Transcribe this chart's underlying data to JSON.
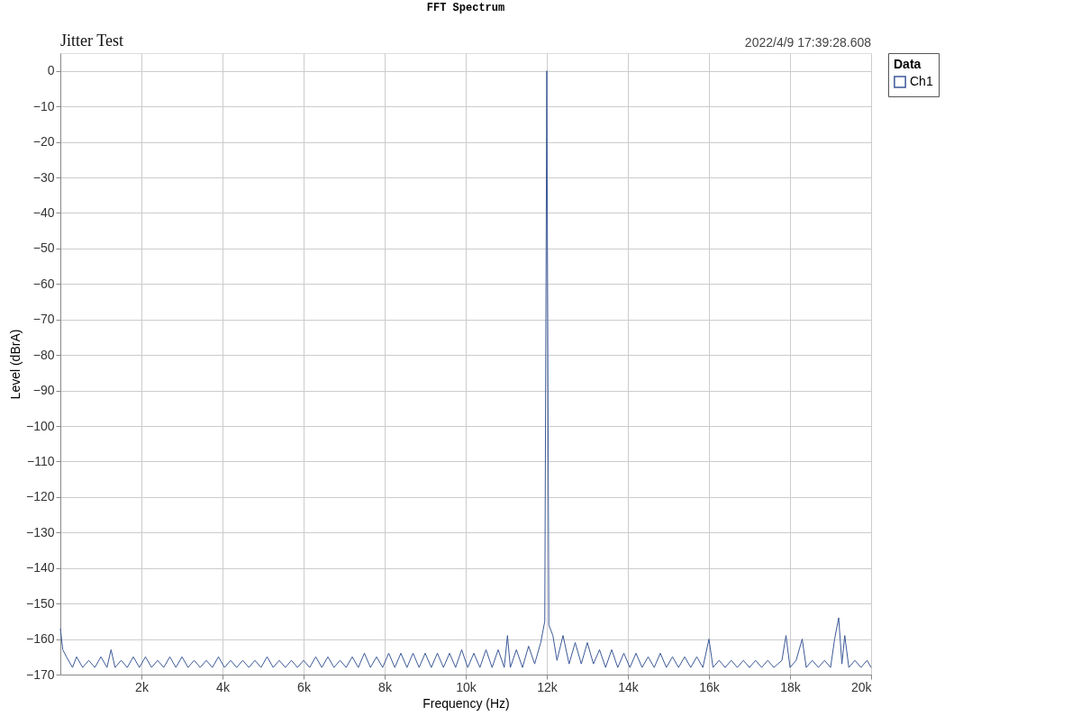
{
  "chart_data": {
    "type": "line",
    "title": "FFT Spectrum",
    "subtitle": "Jitter Test",
    "annotations": [
      "2022/4/9 17:39:28.608"
    ],
    "xlabel": "Frequency (Hz)",
    "ylabel": "Level (dBrA)",
    "legend_title": "Data",
    "legend": "right",
    "grid": true,
    "xlim": [
      0,
      20000
    ],
    "xticks": [
      {
        "value": 2000,
        "label": "2k"
      },
      {
        "value": 4000,
        "label": "4k"
      },
      {
        "value": 6000,
        "label": "6k"
      },
      {
        "value": 8000,
        "label": "8k"
      },
      {
        "value": 10000,
        "label": "10k"
      },
      {
        "value": 12000,
        "label": "12k"
      },
      {
        "value": 14000,
        "label": "14k"
      },
      {
        "value": 16000,
        "label": "16k"
      },
      {
        "value": 18000,
        "label": "18k"
      },
      {
        "value": 20000,
        "label": "20k"
      }
    ],
    "ylim": [
      -170,
      5
    ],
    "yticks": [
      0,
      -10,
      -20,
      -30,
      -40,
      -50,
      -60,
      -70,
      -80,
      -90,
      -100,
      -110,
      -120,
      -130,
      -140,
      -150,
      -160,
      -170
    ],
    "series": [
      {
        "name": "Ch1",
        "color": "#3b5998",
        "x": [
          0,
          60,
          150,
          300,
          400,
          550,
          700,
          850,
          1000,
          1150,
          1250,
          1350,
          1500,
          1650,
          1800,
          1950,
          2100,
          2250,
          2400,
          2550,
          2700,
          2850,
          3000,
          3150,
          3300,
          3450,
          3600,
          3750,
          3900,
          4050,
          4200,
          4350,
          4500,
          4650,
          4800,
          4950,
          5100,
          5250,
          5400,
          5550,
          5700,
          5850,
          6000,
          6150,
          6300,
          6450,
          6600,
          6750,
          6900,
          7050,
          7200,
          7350,
          7500,
          7650,
          7800,
          7950,
          8100,
          8250,
          8400,
          8550,
          8700,
          8850,
          9000,
          9150,
          9300,
          9450,
          9600,
          9750,
          9900,
          10050,
          10200,
          10350,
          10500,
          10650,
          10800,
          10950,
          11030,
          11100,
          11250,
          11400,
          11550,
          11700,
          11850,
          11950,
          12000,
          12050,
          12150,
          12250,
          12400,
          12550,
          12700,
          12850,
          13000,
          13150,
          13300,
          13450,
          13600,
          13750,
          13900,
          14050,
          14200,
          14350,
          14500,
          14650,
          14800,
          14950,
          15100,
          15250,
          15400,
          15550,
          15700,
          15850,
          16000,
          16100,
          16250,
          16400,
          16550,
          16700,
          16850,
          17000,
          17150,
          17300,
          17450,
          17600,
          17800,
          17900,
          18000,
          18150,
          18300,
          18400,
          18550,
          18700,
          18850,
          19000,
          19100,
          19200,
          19280,
          19350,
          19450,
          19600,
          19750,
          19900,
          20000
        ],
        "values": [
          -157,
          -163,
          -165,
          -168,
          -165,
          -168,
          -166,
          -168,
          -165,
          -168,
          -163,
          -168,
          -166,
          -168,
          -165,
          -168,
          -165,
          -168,
          -166,
          -168,
          -165,
          -168,
          -165,
          -168,
          -166,
          -168,
          -166,
          -168,
          -165,
          -168,
          -166,
          -168,
          -166,
          -168,
          -166,
          -168,
          -165,
          -168,
          -166,
          -168,
          -166,
          -168,
          -166,
          -168,
          -165,
          -168,
          -165,
          -168,
          -166,
          -168,
          -165,
          -168,
          -164,
          -168,
          -165,
          -168,
          -164,
          -168,
          -164,
          -168,
          -164,
          -168,
          -164,
          -168,
          -164,
          -168,
          -164,
          -168,
          -163,
          -168,
          -164,
          -168,
          -163,
          -168,
          -163,
          -168,
          -159,
          -168,
          -163,
          -168,
          -162,
          -167,
          -161,
          -155,
          0,
          -156,
          -159,
          -166,
          -159,
          -167,
          -161,
          -167,
          -161,
          -167,
          -163,
          -168,
          -163,
          -168,
          -164,
          -168,
          -164,
          -168,
          -165,
          -168,
          -164,
          -168,
          -165,
          -168,
          -165,
          -168,
          -165,
          -168,
          -160,
          -168,
          -166,
          -168,
          -166,
          -168,
          -166,
          -168,
          -166,
          -168,
          -166,
          -168,
          -166,
          -159,
          -168,
          -166,
          -160,
          -168,
          -166,
          -168,
          -166,
          -168,
          -160,
          -154,
          -167,
          -159,
          -168,
          -166,
          -168,
          -166,
          -168
        ]
      }
    ]
  }
}
